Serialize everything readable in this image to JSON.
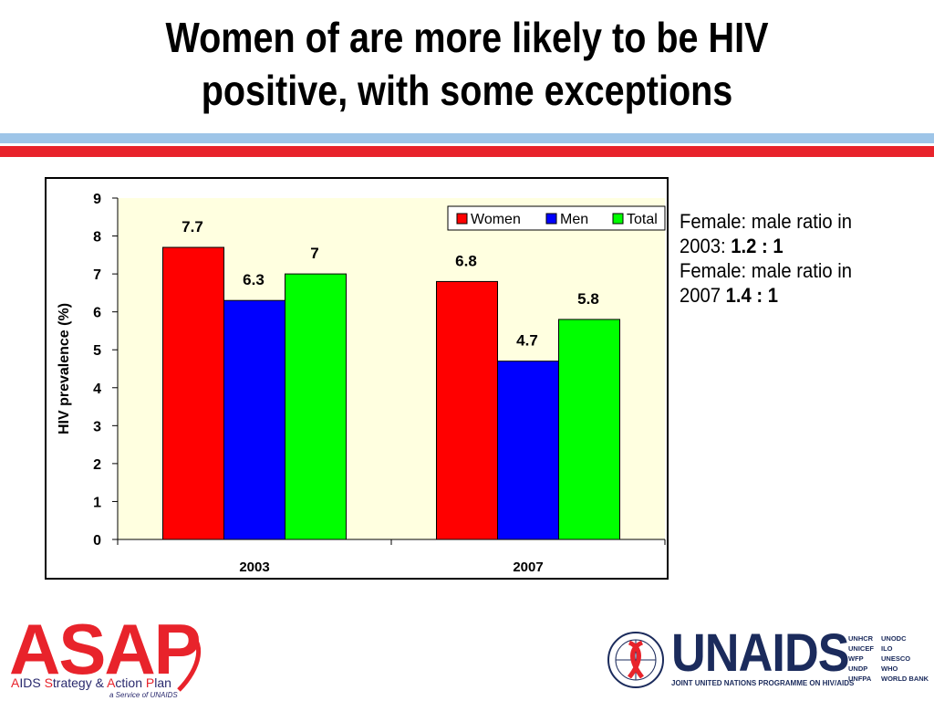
{
  "slide": {
    "title_line1": "Women of are more likely to be HIV",
    "title_line2": "positive, with some exceptions"
  },
  "side_notes": {
    "line1": "Female: male ratio in",
    "line2_prefix": "2003: ",
    "line2_ratio": "1.2 : 1",
    "line3": "Female: male ratio in",
    "line4_prefix": "2007 ",
    "line4_ratio": "1.4 : 1"
  },
  "chart_data": {
    "type": "bar",
    "categories": [
      "2003",
      "2007"
    ],
    "series": [
      {
        "name": "Women",
        "color": "#ff0000",
        "values": [
          7.7,
          6.8
        ]
      },
      {
        "name": "Men",
        "color": "#0000ff",
        "values": [
          6.3,
          4.7
        ]
      },
      {
        "name": "Total",
        "color": "#00ff00",
        "values": [
          7,
          5.8
        ]
      }
    ],
    "data_labels": [
      [
        "7.7",
        "6.8"
      ],
      [
        "6.3",
        "4.7"
      ],
      [
        "7",
        "5.8"
      ]
    ],
    "ylabel": "HIV prevalence (%)",
    "xlabel": "",
    "ylim": [
      0,
      9
    ],
    "yticks": [
      0,
      1,
      2,
      3,
      4,
      5,
      6,
      7,
      8,
      9
    ],
    "legend_position": "top-right",
    "plot_background": "#ffffe0",
    "grid": false
  },
  "logos": {
    "asap_word": "ASAP",
    "asap_tagline_parts": [
      "A",
      "IDS ",
      "S",
      "trategy & ",
      "A",
      "ction ",
      "P",
      "lan"
    ],
    "asap_service": "a Service of UNAIDS",
    "unaids_word": "UNAIDS",
    "unaids_tagline": "JOINT UNITED NATIONS PROGRAMME ON HIV/AIDS",
    "cosponsors_col1": [
      "UNHCR",
      "UNICEF",
      "WFP",
      "UNDP",
      "UNFPA"
    ],
    "cosponsors_col2": [
      "UNODC",
      "ILO",
      "UNESCO",
      "WHO",
      "WORLD BANK"
    ]
  }
}
